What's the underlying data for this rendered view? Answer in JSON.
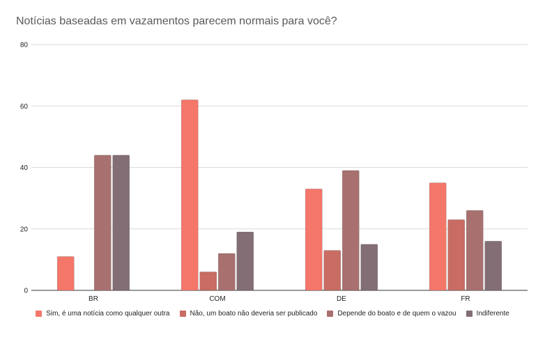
{
  "chart_data": {
    "type": "bar",
    "title": "Notícias baseadas em vazamentos parecem normais para você?",
    "xlabel": "",
    "ylabel": "",
    "categories": [
      "BR",
      "COM",
      "DE",
      "FR"
    ],
    "ylim": [
      0,
      80
    ],
    "yticks": [
      0,
      20,
      40,
      60,
      80
    ],
    "grid": true,
    "legend_position": "bottom",
    "series": [
      {
        "name": "Sim, é uma notícia como qualquer outra",
        "color": "#f4776a",
        "values": [
          11,
          62,
          33,
          35
        ]
      },
      {
        "name": "Não, um boato não deveria ser publicado",
        "color": "#c96c64",
        "values": [
          0,
          6,
          13,
          23
        ]
      },
      {
        "name": "Depende do boato e de quem o vazou",
        "color": "#a8716f",
        "values": [
          44,
          12,
          39,
          26
        ]
      },
      {
        "name": "Indiferente",
        "color": "#836e76",
        "values": [
          44,
          19,
          15,
          16
        ]
      }
    ]
  }
}
